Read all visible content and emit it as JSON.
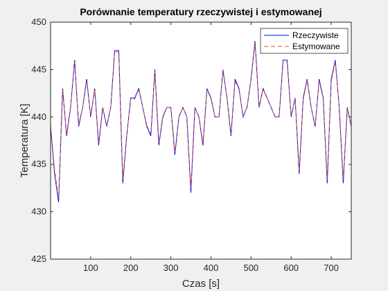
{
  "chart_data": {
    "type": "line",
    "title": "Porównanie temperatury rzeczywistej i estymowanej",
    "xlabel": "Czas [s]",
    "ylabel": "Temperatura [K]",
    "xlim": [
      0,
      750
    ],
    "ylim": [
      425,
      450
    ],
    "xticks": [
      100,
      200,
      300,
      400,
      500,
      600,
      700
    ],
    "yticks": [
      425,
      430,
      435,
      440,
      445,
      450
    ],
    "xtick_labels": [
      "100",
      "200",
      "300",
      "400",
      "500",
      "600",
      "700"
    ],
    "ytick_labels": [
      "425",
      "430",
      "435",
      "440",
      "445",
      "450"
    ],
    "grid": false,
    "legend_position": "top-right",
    "series": [
      {
        "name": "Rzeczywiste",
        "color": "#0000ff",
        "style": "solid",
        "x": [
          0,
          10,
          20,
          30,
          40,
          50,
          60,
          70,
          80,
          90,
          100,
          110,
          120,
          130,
          140,
          150,
          160,
          170,
          180,
          190,
          200,
          210,
          220,
          230,
          240,
          250,
          260,
          270,
          280,
          290,
          300,
          310,
          320,
          330,
          340,
          350,
          360,
          370,
          380,
          390,
          400,
          410,
          420,
          430,
          440,
          450,
          460,
          470,
          480,
          490,
          500,
          510,
          520,
          530,
          540,
          550,
          560,
          570,
          580,
          590,
          600,
          610,
          620,
          630,
          640,
          650,
          660,
          670,
          680,
          690,
          700,
          710,
          720,
          730,
          740,
          750
        ],
        "values": [
          439,
          434,
          431,
          443,
          438,
          441,
          446,
          439,
          441,
          444,
          440,
          443,
          437,
          441,
          439,
          441,
          447,
          447,
          433,
          438,
          442,
          442,
          443,
          441,
          439,
          438,
          445,
          437,
          440,
          441,
          441,
          436,
          440,
          441,
          440,
          432,
          441,
          440,
          437,
          443,
          442,
          440,
          440,
          445,
          442,
          438,
          444,
          443,
          440,
          441,
          444,
          448,
          441,
          443,
          442,
          441,
          440,
          440,
          446,
          446,
          440,
          442,
          434,
          442,
          444,
          441,
          439,
          444,
          442,
          433,
          444,
          446,
          441,
          433,
          441,
          439
        ]
      },
      {
        "name": "Estymowane",
        "color": "#d95319",
        "style": "dashed",
        "x": [
          0,
          10,
          20,
          30,
          40,
          50,
          60,
          70,
          80,
          90,
          100,
          110,
          120,
          130,
          140,
          150,
          160,
          170,
          180,
          190,
          200,
          210,
          220,
          230,
          240,
          250,
          260,
          270,
          280,
          290,
          300,
          310,
          320,
          330,
          340,
          350,
          360,
          370,
          380,
          390,
          400,
          410,
          420,
          430,
          440,
          450,
          460,
          470,
          480,
          490,
          500,
          510,
          520,
          530,
          540,
          550,
          560,
          570,
          580,
          590,
          600,
          610,
          620,
          630,
          640,
          650,
          660,
          670,
          680,
          690,
          700,
          710,
          720,
          730,
          740,
          750
        ],
        "values": [
          439.2,
          434.4,
          431.3,
          442.8,
          438.2,
          441.1,
          445.8,
          439.2,
          441.0,
          443.8,
          440.1,
          442.9,
          437.3,
          441.0,
          439.1,
          441.0,
          446.8,
          446.9,
          433.4,
          438.1,
          441.9,
          441.9,
          442.9,
          441.0,
          439.1,
          438.2,
          444.8,
          437.2,
          440.1,
          441.0,
          441.0,
          436.3,
          440.0,
          441.0,
          440.0,
          432.4,
          441.0,
          440.0,
          437.2,
          442.9,
          441.9,
          440.0,
          440.0,
          444.9,
          442.0,
          438.2,
          443.8,
          442.9,
          440.1,
          441.0,
          443.9,
          447.8,
          441.1,
          442.9,
          442.0,
          441.0,
          440.0,
          440.0,
          445.8,
          445.8,
          440.1,
          441.9,
          434.3,
          441.8,
          443.9,
          441.0,
          439.1,
          443.8,
          441.9,
          433.4,
          443.8,
          445.8,
          441.1,
          433.4,
          440.9,
          439.0
        ]
      }
    ]
  }
}
